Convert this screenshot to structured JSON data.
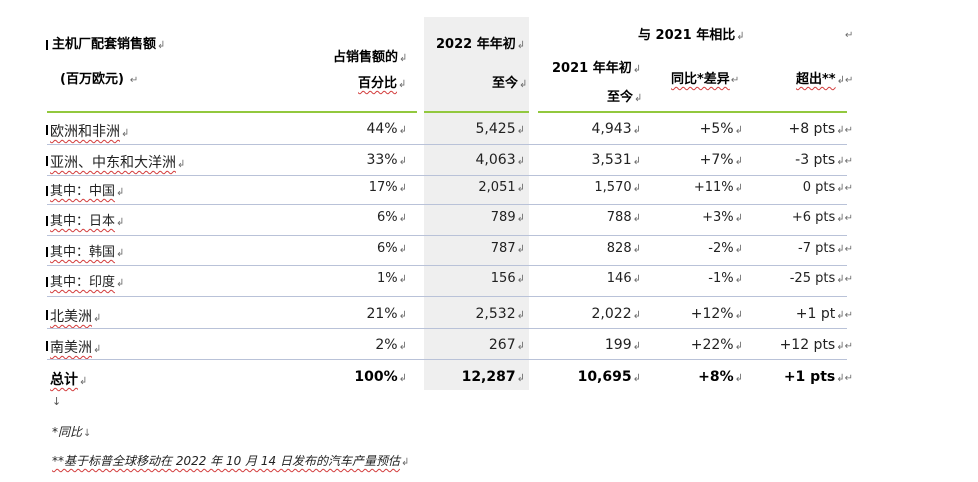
{
  "header": {
    "title_line1": "主机厂配套销售额",
    "title_line2": "(百万欧元)",
    "share_line1": "占销售额的",
    "share_line2": "百分比",
    "ytd2022_line1": "2022 年年初",
    "ytd2022_line2": "至今",
    "compare_title": "与 2021 年相比",
    "ytd2021_line1": "2021 年年初",
    "ytd2021_line2": "至今",
    "yoy": "同比*差异",
    "outperf": "超出**"
  },
  "table": {
    "rows": [
      {
        "name": "欧洲和非洲",
        "share": "44%",
        "ytd2022": "5,425",
        "ytd2021": "4,943",
        "yoy": "+5%",
        "outperf": "+8 pts"
      },
      {
        "name": "亚洲、中东和大洋洲",
        "share": "33%",
        "ytd2022": "4,063",
        "ytd2021": "3,531",
        "yoy": "+7%",
        "outperf": "-3 pts"
      },
      {
        "name": "其中：中国",
        "share": "17%",
        "ytd2022": "2,051",
        "ytd2021": "1,570",
        "yoy": "+11%",
        "outperf": "0 pts"
      },
      {
        "name": "其中：日本",
        "share": "6%",
        "ytd2022": "789",
        "ytd2021": "788",
        "yoy": "+3%",
        "outperf": "+6 pts"
      },
      {
        "name": "其中：韩国",
        "share": "6%",
        "ytd2022": "787",
        "ytd2021": "828",
        "yoy": "-2%",
        "outperf": "-7 pts"
      },
      {
        "name": "其中：印度",
        "share": "1%",
        "ytd2022": "156",
        "ytd2021": "146",
        "yoy": "-1%",
        "outperf": "-25 pts"
      },
      {
        "name": "北美洲",
        "share": "21%",
        "ytd2022": "2,532",
        "ytd2021": "2,022",
        "yoy": "+12%",
        "outperf": "+1 pt"
      },
      {
        "name": "南美洲",
        "share": "2%",
        "ytd2022": "267",
        "ytd2021": "199",
        "yoy": "+22%",
        "outperf": "+12 pts"
      }
    ],
    "total": {
      "name": "总计",
      "share": "100%",
      "ytd2022": "12,287",
      "ytd2021": "10,695",
      "yoy": "+8%",
      "outperf": "+1 pts"
    }
  },
  "footnotes": {
    "note1": "*同比",
    "note2": "**基于标普全球移动在 2022 年 10 月 14 日发布的汽车产量预估"
  }
}
